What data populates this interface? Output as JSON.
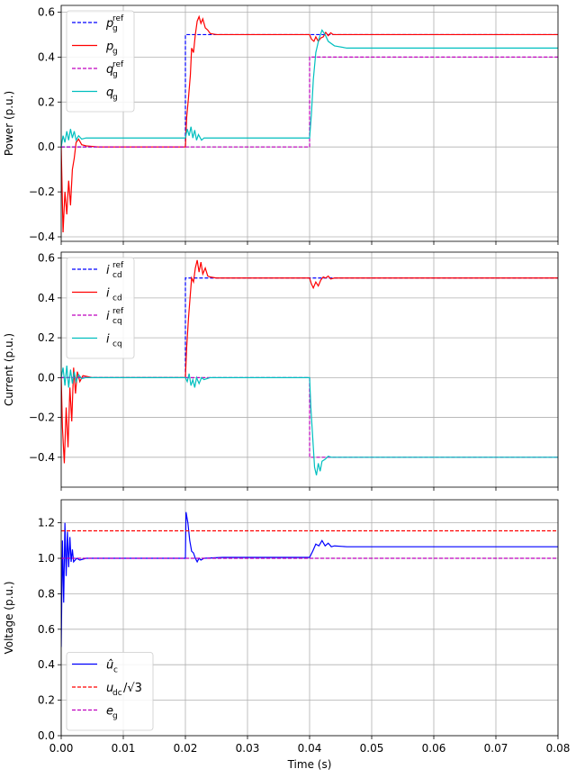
{
  "chart_data": [
    {
      "type": "line",
      "ylabel": "Power (p.u.)",
      "xlim": [
        0,
        0.08
      ],
      "ylim": [
        -0.42,
        0.63
      ],
      "yticks": [
        -0.4,
        -0.2,
        0.0,
        0.2,
        0.4,
        0.6
      ],
      "ytick_labels": [
        "−0.4",
        "−0.2",
        "0.0",
        "0.2",
        "0.4",
        "0.6"
      ],
      "xticks": [
        0,
        0.01,
        0.02,
        0.03,
        0.04,
        0.05,
        0.06,
        0.07,
        0.08
      ],
      "grid": true,
      "legend": "upper left",
      "series": [
        {
          "name": "p_g^ref",
          "label_main": "p",
          "label_sub": "g",
          "label_sup": "ref",
          "color": "#0000ff",
          "dash": true,
          "points": [
            [
              0,
              0
            ],
            [
              0.02,
              0
            ],
            [
              0.02,
              0.5
            ],
            [
              0.08,
              0.5
            ]
          ]
        },
        {
          "name": "p_g",
          "label_main": "p",
          "label_sub": "g",
          "label_sup": "",
          "color": "#ff0000",
          "dash": false,
          "points": [
            [
              0,
              0
            ],
            [
              0.0003,
              -0.38
            ],
            [
              0.0006,
              -0.2
            ],
            [
              0.0009,
              -0.3
            ],
            [
              0.0012,
              -0.15
            ],
            [
              0.0015,
              -0.26
            ],
            [
              0.0018,
              -0.1
            ],
            [
              0.0021,
              -0.05
            ],
            [
              0.0024,
              0.02
            ],
            [
              0.0028,
              0.035
            ],
            [
              0.0033,
              0.01
            ],
            [
              0.004,
              0.005
            ],
            [
              0.006,
              0.0
            ],
            [
              0.02,
              0.0
            ],
            [
              0.0202,
              0.13
            ],
            [
              0.0205,
              0.22
            ],
            [
              0.0208,
              0.32
            ],
            [
              0.021,
              0.44
            ],
            [
              0.0213,
              0.42
            ],
            [
              0.0216,
              0.5
            ],
            [
              0.0219,
              0.56
            ],
            [
              0.0222,
              0.58
            ],
            [
              0.0225,
              0.55
            ],
            [
              0.0228,
              0.57
            ],
            [
              0.0232,
              0.53
            ],
            [
              0.0236,
              0.52
            ],
            [
              0.024,
              0.505
            ],
            [
              0.025,
              0.5
            ],
            [
              0.04,
              0.5
            ],
            [
              0.0403,
              0.48
            ],
            [
              0.0407,
              0.47
            ],
            [
              0.041,
              0.49
            ],
            [
              0.0414,
              0.47
            ],
            [
              0.0418,
              0.485
            ],
            [
              0.0422,
              0.49
            ],
            [
              0.0426,
              0.51
            ],
            [
              0.043,
              0.495
            ],
            [
              0.0434,
              0.508
            ],
            [
              0.0438,
              0.5
            ],
            [
              0.045,
              0.5
            ],
            [
              0.08,
              0.5
            ]
          ]
        },
        {
          "name": "q_g^ref",
          "label_main": "q",
          "label_sub": "g",
          "label_sup": "ref",
          "color": "#bf00bf",
          "dash": true,
          "points": [
            [
              0,
              0
            ],
            [
              0.04,
              0
            ],
            [
              0.04,
              0.4
            ],
            [
              0.08,
              0.4
            ]
          ]
        },
        {
          "name": "q_g",
          "label_main": "q",
          "label_sub": "g",
          "label_sup": "",
          "color": "#00bfbf",
          "dash": false,
          "points": [
            [
              0,
              0
            ],
            [
              0.0003,
              0.05
            ],
            [
              0.0006,
              0.02
            ],
            [
              0.0009,
              0.07
            ],
            [
              0.0012,
              0.03
            ],
            [
              0.0015,
              0.08
            ],
            [
              0.0018,
              0.04
            ],
            [
              0.0021,
              0.07
            ],
            [
              0.0024,
              0.03
            ],
            [
              0.0028,
              0.05
            ],
            [
              0.0033,
              0.035
            ],
            [
              0.004,
              0.04
            ],
            [
              0.006,
              0.04
            ],
            [
              0.02,
              0.04
            ],
            [
              0.0203,
              0.08
            ],
            [
              0.0206,
              0.05
            ],
            [
              0.0209,
              0.09
            ],
            [
              0.0212,
              0.04
            ],
            [
              0.0215,
              0.075
            ],
            [
              0.0218,
              0.03
            ],
            [
              0.0221,
              0.055
            ],
            [
              0.0226,
              0.03
            ],
            [
              0.023,
              0.04
            ],
            [
              0.025,
              0.04
            ],
            [
              0.04,
              0.04
            ],
            [
              0.0403,
              0.15
            ],
            [
              0.0406,
              0.3
            ],
            [
              0.041,
              0.42
            ],
            [
              0.0415,
              0.48
            ],
            [
              0.042,
              0.52
            ],
            [
              0.0425,
              0.5
            ],
            [
              0.043,
              0.47
            ],
            [
              0.044,
              0.45
            ],
            [
              0.046,
              0.44
            ],
            [
              0.08,
              0.44
            ]
          ]
        }
      ]
    },
    {
      "type": "line",
      "ylabel": "Current (p.u.)",
      "xlim": [
        0,
        0.08
      ],
      "ylim": [
        -0.55,
        0.63
      ],
      "yticks": [
        -0.4,
        -0.2,
        0.0,
        0.2,
        0.4,
        0.6
      ],
      "ytick_labels": [
        "−0.4",
        "−0.2",
        "0.0",
        "0.2",
        "0.4",
        "0.6"
      ],
      "xticks": [
        0,
        0.01,
        0.02,
        0.03,
        0.04,
        0.05,
        0.06,
        0.07,
        0.08
      ],
      "grid": true,
      "legend": "upper left",
      "series": [
        {
          "name": "i_cd^ref",
          "label_main": "i",
          "label_sub": "cd",
          "label_sup": "ref",
          "color": "#0000ff",
          "dash": true,
          "points": [
            [
              0,
              0
            ],
            [
              0.02,
              0
            ],
            [
              0.02,
              0.5
            ],
            [
              0.08,
              0.5
            ]
          ]
        },
        {
          "name": "i_cd",
          "label_main": "i",
          "label_sub": "cd",
          "label_sup": "",
          "color": "#ff0000",
          "dash": false,
          "points": [
            [
              0,
              0
            ],
            [
              0.0002,
              -0.25
            ],
            [
              0.0005,
              -0.43
            ],
            [
              0.0008,
              -0.15
            ],
            [
              0.0011,
              -0.35
            ],
            [
              0.0014,
              -0.05
            ],
            [
              0.0017,
              -0.22
            ],
            [
              0.002,
              0.05
            ],
            [
              0.0023,
              -0.08
            ],
            [
              0.0026,
              0.03
            ],
            [
              0.003,
              -0.02
            ],
            [
              0.0035,
              0.01
            ],
            [
              0.005,
              0.0
            ],
            [
              0.02,
              0.0
            ],
            [
              0.0202,
              0.15
            ],
            [
              0.0205,
              0.3
            ],
            [
              0.0208,
              0.42
            ],
            [
              0.021,
              0.5
            ],
            [
              0.0213,
              0.48
            ],
            [
              0.0216,
              0.55
            ],
            [
              0.0219,
              0.59
            ],
            [
              0.0222,
              0.53
            ],
            [
              0.0225,
              0.58
            ],
            [
              0.0228,
              0.52
            ],
            [
              0.0232,
              0.55
            ],
            [
              0.0236,
              0.51
            ],
            [
              0.024,
              0.505
            ],
            [
              0.025,
              0.5
            ],
            [
              0.04,
              0.5
            ],
            [
              0.0403,
              0.47
            ],
            [
              0.0406,
              0.45
            ],
            [
              0.041,
              0.48
            ],
            [
              0.0414,
              0.46
            ],
            [
              0.0418,
              0.49
            ],
            [
              0.0422,
              0.505
            ],
            [
              0.0426,
              0.5
            ],
            [
              0.043,
              0.51
            ],
            [
              0.0434,
              0.495
            ],
            [
              0.044,
              0.5
            ],
            [
              0.08,
              0.5
            ]
          ]
        },
        {
          "name": "i_cq^ref",
          "label_main": "i",
          "label_sub": "cq",
          "label_sup": "ref",
          "color": "#bf00bf",
          "dash": true,
          "points": [
            [
              0,
              0
            ],
            [
              0.04,
              0
            ],
            [
              0.04,
              -0.4
            ],
            [
              0.08,
              -0.4
            ]
          ]
        },
        {
          "name": "i_cq",
          "label_main": "i",
          "label_sub": "cq",
          "label_sup": "",
          "color": "#00bfbf",
          "dash": false,
          "points": [
            [
              0,
              0
            ],
            [
              0.0003,
              0.05
            ],
            [
              0.0006,
              -0.04
            ],
            [
              0.0009,
              0.06
            ],
            [
              0.0012,
              -0.05
            ],
            [
              0.0015,
              0.04
            ],
            [
              0.0018,
              -0.03
            ],
            [
              0.0021,
              0.03
            ],
            [
              0.0024,
              -0.02
            ],
            [
              0.0028,
              0.015
            ],
            [
              0.0033,
              -0.005
            ],
            [
              0.004,
              0.0
            ],
            [
              0.02,
              0.0
            ],
            [
              0.0203,
              -0.02
            ],
            [
              0.0206,
              0.02
            ],
            [
              0.0209,
              -0.04
            ],
            [
              0.0212,
              -0.01
            ],
            [
              0.0215,
              -0.05
            ],
            [
              0.0218,
              0.0
            ],
            [
              0.0222,
              -0.03
            ],
            [
              0.0226,
              0.0
            ],
            [
              0.023,
              -0.01
            ],
            [
              0.024,
              0.0
            ],
            [
              0.04,
              0.0
            ],
            [
              0.0402,
              -0.15
            ],
            [
              0.0405,
              -0.3
            ],
            [
              0.0408,
              -0.45
            ],
            [
              0.0411,
              -0.49
            ],
            [
              0.0414,
              -0.43
            ],
            [
              0.0417,
              -0.47
            ],
            [
              0.042,
              -0.42
            ],
            [
              0.0425,
              -0.41
            ],
            [
              0.043,
              -0.395
            ],
            [
              0.0435,
              -0.4
            ],
            [
              0.045,
              -0.4
            ],
            [
              0.08,
              -0.4
            ]
          ]
        }
      ]
    },
    {
      "type": "line",
      "xlabel": "Time (s)",
      "ylabel": "Voltage (p.u.)",
      "xlim": [
        0,
        0.08
      ],
      "ylim": [
        0,
        1.33
      ],
      "yticks": [
        0.0,
        0.2,
        0.4,
        0.6,
        0.8,
        1.0,
        1.2
      ],
      "ytick_labels": [
        "0.0",
        "0.2",
        "0.4",
        "0.6",
        "0.8",
        "1.0",
        "1.2"
      ],
      "xticks": [
        0,
        0.01,
        0.02,
        0.03,
        0.04,
        0.05,
        0.06,
        0.07,
        0.08
      ],
      "xtick_labels": [
        "0.00",
        "0.01",
        "0.02",
        "0.03",
        "0.04",
        "0.05",
        "0.06",
        "0.07",
        "0.08"
      ],
      "grid": true,
      "legend": "lower left",
      "series": [
        {
          "name": "û_c",
          "label_main": "û",
          "label_sub": "c",
          "label_sup": "",
          "color": "#0000ff",
          "dash": false,
          "points": [
            [
              0,
              0.5
            ],
            [
              0.0002,
              1.1
            ],
            [
              0.0004,
              0.75
            ],
            [
              0.0006,
              1.2
            ],
            [
              0.0008,
              0.9
            ],
            [
              0.001,
              1.15
            ],
            [
              0.0012,
              0.95
            ],
            [
              0.0014,
              1.12
            ],
            [
              0.0016,
              0.98
            ],
            [
              0.0018,
              1.05
            ],
            [
              0.002,
              0.98
            ],
            [
              0.0025,
              1.0
            ],
            [
              0.003,
              0.99
            ],
            [
              0.004,
              1.0
            ],
            [
              0.02,
              1.0
            ],
            [
              0.0201,
              1.26
            ],
            [
              0.0204,
              1.2
            ],
            [
              0.0207,
              1.1
            ],
            [
              0.021,
              1.04
            ],
            [
              0.0213,
              1.03
            ],
            [
              0.0216,
              1.0
            ],
            [
              0.0219,
              0.98
            ],
            [
              0.0222,
              1.0
            ],
            [
              0.0225,
              0.99
            ],
            [
              0.023,
              1.0
            ],
            [
              0.026,
              1.005
            ],
            [
              0.04,
              1.005
            ],
            [
              0.0405,
              1.04
            ],
            [
              0.041,
              1.08
            ],
            [
              0.0415,
              1.07
            ],
            [
              0.042,
              1.1
            ],
            [
              0.0425,
              1.07
            ],
            [
              0.043,
              1.085
            ],
            [
              0.0435,
              1.065
            ],
            [
              0.044,
              1.07
            ],
            [
              0.046,
              1.065
            ],
            [
              0.08,
              1.065
            ]
          ]
        },
        {
          "name": "u_dc/√3",
          "label_main": "u",
          "label_sub": "dc",
          "label_sup": "",
          "label_tail": "/√3",
          "color": "#ff0000",
          "dash": true,
          "points": [
            [
              0,
              1.155
            ],
            [
              0.08,
              1.155
            ]
          ]
        },
        {
          "name": "e_g",
          "label_main": "e",
          "label_sub": "g",
          "label_sup": "",
          "color": "#bf00bf",
          "dash": true,
          "points": [
            [
              0,
              1.0
            ],
            [
              0.08,
              1.0
            ]
          ]
        }
      ]
    }
  ]
}
